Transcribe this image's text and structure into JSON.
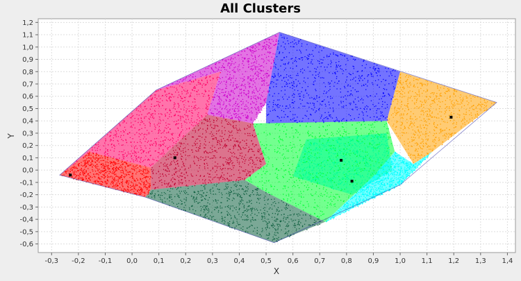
{
  "chart_data": {
    "type": "scatter",
    "title": "All Clusters",
    "xlabel": "X",
    "ylabel": "Y",
    "xlim": [
      -0.35,
      1.43
    ],
    "ylim": [
      -0.67,
      1.23
    ],
    "x_ticks": [
      -0.3,
      -0.2,
      -0.1,
      0.0,
      0.1,
      0.2,
      0.3,
      0.4,
      0.5,
      0.6,
      0.7,
      0.8,
      0.9,
      1.0,
      1.1,
      1.2,
      1.3,
      1.4
    ],
    "y_ticks": [
      -0.6,
      -0.5,
      -0.4,
      -0.3,
      -0.2,
      -0.1,
      0.0,
      0.1,
      0.2,
      0.3,
      0.4,
      0.5,
      0.6,
      0.7,
      0.8,
      0.9,
      1.0,
      1.1,
      1.2
    ],
    "tick_decimal_separator": ",",
    "grid": true,
    "legend": "none",
    "hull": [
      [
        -0.27,
        -0.04
      ],
      [
        0.09,
        0.65
      ],
      [
        0.55,
        1.12
      ],
      [
        1.36,
        0.55
      ],
      [
        1.0,
        -0.12
      ],
      [
        0.53,
        -0.59
      ],
      [
        0.05,
        -0.22
      ]
    ],
    "series": [
      {
        "color": "#ff0000",
        "region": [
          [
            -0.27,
            -0.04
          ],
          [
            -0.16,
            0.15
          ],
          [
            0.07,
            0.02
          ],
          [
            0.07,
            -0.16
          ],
          [
            0.05,
            -0.22
          ]
        ]
      },
      {
        "color": "#ff0066",
        "region": [
          [
            -0.27,
            -0.04
          ],
          [
            0.09,
            0.65
          ],
          [
            0.33,
            0.8
          ],
          [
            0.28,
            0.45
          ],
          [
            0.07,
            0.02
          ],
          [
            -0.16,
            0.15
          ]
        ]
      },
      {
        "color": "#c00030",
        "region": [
          [
            0.07,
            0.02
          ],
          [
            0.28,
            0.45
          ],
          [
            0.45,
            0.38
          ],
          [
            0.5,
            0.05
          ],
          [
            0.42,
            -0.08
          ],
          [
            0.07,
            -0.16
          ]
        ]
      },
      {
        "color": "#cc00cc",
        "region": [
          [
            0.09,
            0.65
          ],
          [
            0.55,
            1.12
          ],
          [
            0.5,
            0.55
          ],
          [
            0.45,
            0.38
          ],
          [
            0.28,
            0.45
          ],
          [
            0.33,
            0.8
          ]
        ]
      },
      {
        "color": "#0000ff",
        "region": [
          [
            0.55,
            1.12
          ],
          [
            1.0,
            0.8
          ],
          [
            0.95,
            0.4
          ],
          [
            0.5,
            0.38
          ],
          [
            0.5,
            0.55
          ]
        ]
      },
      {
        "color": "#0f6040",
        "region": [
          [
            0.05,
            -0.22
          ],
          [
            0.07,
            -0.16
          ],
          [
            0.42,
            -0.08
          ],
          [
            0.5,
            -0.18
          ],
          [
            0.72,
            -0.42
          ],
          [
            0.53,
            -0.59
          ]
        ]
      },
      {
        "color": "#00ff33",
        "region": [
          [
            0.45,
            0.38
          ],
          [
            0.95,
            0.4
          ],
          [
            0.98,
            0.15
          ],
          [
            0.9,
            -0.05
          ],
          [
            0.72,
            -0.42
          ],
          [
            0.5,
            -0.18
          ],
          [
            0.42,
            -0.08
          ],
          [
            0.5,
            0.05
          ]
        ]
      },
      {
        "color": "#00ff99",
        "region": [
          [
            0.65,
            0.25
          ],
          [
            0.95,
            0.3
          ],
          [
            0.97,
            0.0
          ],
          [
            0.82,
            -0.2
          ],
          [
            0.6,
            -0.05
          ]
        ]
      },
      {
        "color": "#ffa000",
        "region": [
          [
            1.0,
            0.8
          ],
          [
            1.36,
            0.55
          ],
          [
            1.12,
            0.15
          ],
          [
            1.05,
            0.05
          ],
          [
            0.95,
            0.4
          ]
        ]
      },
      {
        "color": "#00ffff",
        "region": [
          [
            1.12,
            0.15
          ],
          [
            1.0,
            -0.12
          ],
          [
            0.72,
            -0.42
          ],
          [
            0.9,
            -0.05
          ],
          [
            0.98,
            0.15
          ],
          [
            1.05,
            0.05
          ]
        ]
      }
    ],
    "centroids": [
      [
        -0.23,
        -0.04
      ],
      [
        0.16,
        0.1
      ],
      [
        0.78,
        0.08
      ],
      [
        0.82,
        -0.09
      ],
      [
        1.19,
        0.43
      ]
    ]
  }
}
